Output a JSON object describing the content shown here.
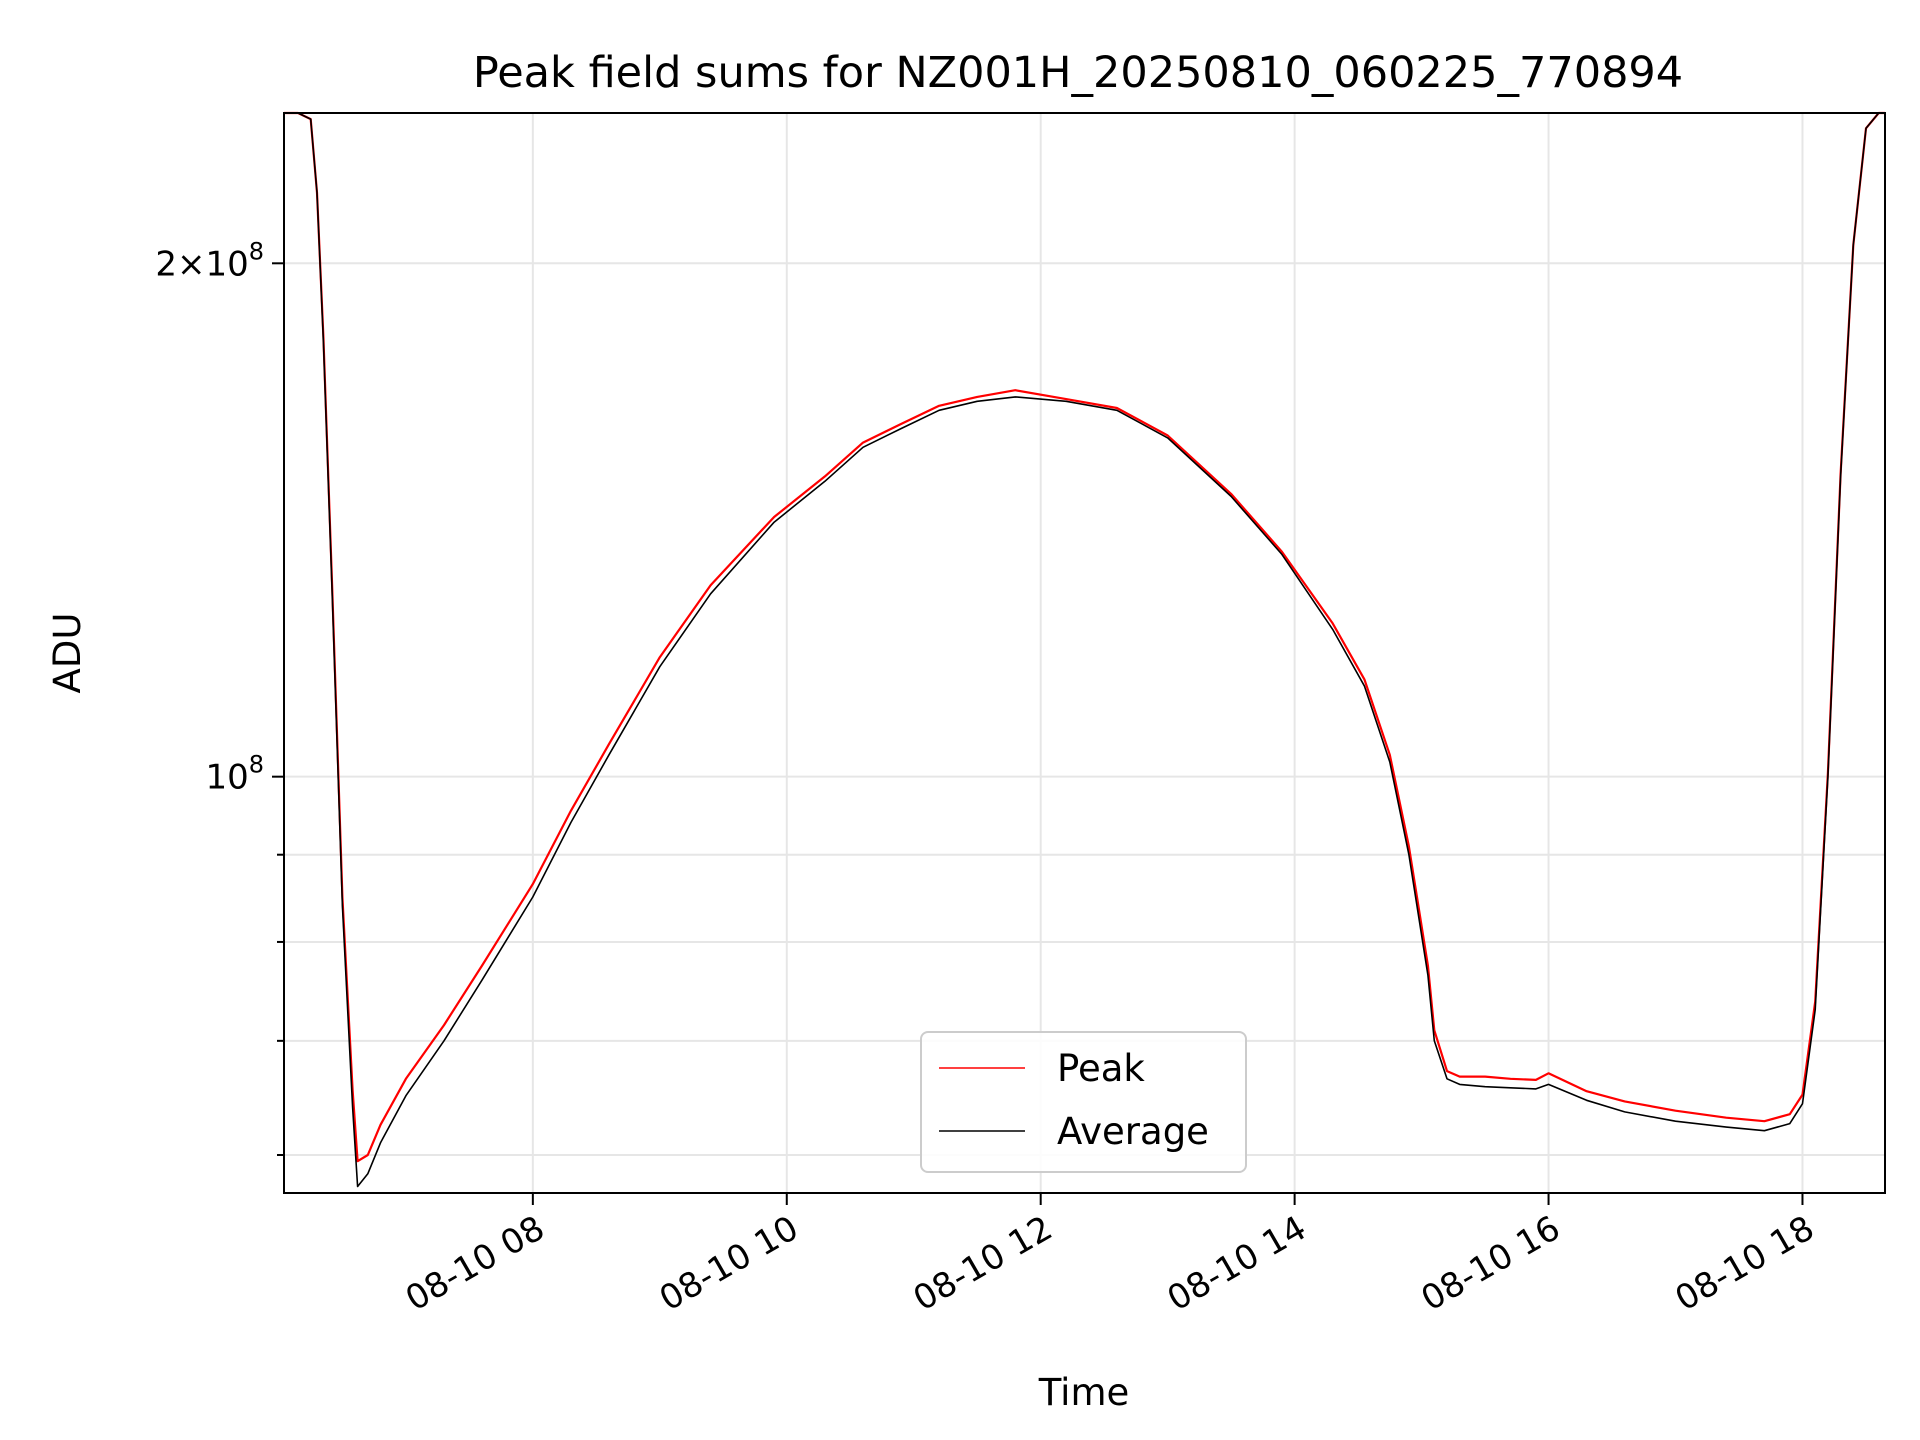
{
  "chart_data": {
    "type": "line",
    "title": "Peak field sums for NZ001H_20250810_060225_770894",
    "xlabel": "Time",
    "ylabel": "ADU",
    "x_unit": "hours on 2025-08-10",
    "xlim": [
      6.04,
      18.65
    ],
    "ylim": [
      57000000,
      245000000
    ],
    "yscale": "log",
    "grid": true,
    "legend": {
      "position": "lower-center",
      "entries": [
        "Peak",
        "Average"
      ]
    },
    "x_ticks": [
      {
        "value": 8,
        "label": "08-10 08"
      },
      {
        "value": 10,
        "label": "08-10 10"
      },
      {
        "value": 12,
        "label": "08-10 12"
      },
      {
        "value": 14,
        "label": "08-10 14"
      },
      {
        "value": 16,
        "label": "08-10 16"
      },
      {
        "value": 18,
        "label": "08-10 18"
      }
    ],
    "y_ticks": [
      {
        "value": 200000000,
        "label": "2×10",
        "exp": "8"
      },
      {
        "value": 100000000,
        "label": "10",
        "exp": "8"
      }
    ],
    "y_minor_ticks": [
      60000000,
      70000000,
      80000000,
      90000000
    ],
    "colors": {
      "Peak": "#ff0000",
      "Average": "#000000"
    },
    "series": [
      {
        "name": "Average",
        "x": [
          6.04,
          6.15,
          6.25,
          6.3,
          6.35,
          6.42,
          6.5,
          6.58,
          6.62,
          6.7,
          6.8,
          7.0,
          7.3,
          7.6,
          8.0,
          8.3,
          8.6,
          9.0,
          9.4,
          9.9,
          10.3,
          10.6,
          10.9,
          11.2,
          11.5,
          11.8,
          12.2,
          12.6,
          13.0,
          13.5,
          13.9,
          14.3,
          14.55,
          14.75,
          14.9,
          15.05,
          15.1,
          15.2,
          15.3,
          15.5,
          15.7,
          15.9,
          16.0,
          16.3,
          16.6,
          17.0,
          17.4,
          17.7,
          17.9,
          18.0,
          18.1,
          18.2,
          18.3,
          18.4,
          18.5,
          18.6,
          18.65
        ],
        "y": [
          245000000,
          245000000,
          243000000,
          220000000,
          180000000,
          128000000,
          84000000,
          64000000,
          57500000,
          58500000,
          61000000,
          65000000,
          70000000,
          76000000,
          85000000,
          94000000,
          103000000,
          116000000,
          128000000,
          141000000,
          149000000,
          156000000,
          160000000,
          164000000,
          166000000,
          167000000,
          166000000,
          164000000,
          158000000,
          146000000,
          135000000,
          122000000,
          113000000,
          102000000,
          90000000,
          76500000,
          70000000,
          66500000,
          66000000,
          65800000,
          65700000,
          65600000,
          66000000,
          64600000,
          63600000,
          62800000,
          62300000,
          62000000,
          62600000,
          64300000,
          73000000,
          100000000,
          150000000,
          205000000,
          240000000,
          245000000,
          245000000
        ]
      },
      {
        "name": "Peak",
        "x": [
          6.04,
          6.15,
          6.25,
          6.3,
          6.35,
          6.42,
          6.5,
          6.58,
          6.62,
          6.7,
          6.8,
          7.0,
          7.3,
          7.6,
          8.0,
          8.3,
          8.6,
          9.0,
          9.4,
          9.9,
          10.3,
          10.6,
          10.9,
          11.2,
          11.5,
          11.8,
          12.2,
          12.6,
          13.0,
          13.5,
          13.9,
          14.3,
          14.55,
          14.75,
          14.9,
          15.05,
          15.1,
          15.2,
          15.3,
          15.5,
          15.7,
          15.9,
          16.0,
          16.3,
          16.6,
          17.0,
          17.4,
          17.7,
          17.9,
          18.0,
          18.1,
          18.2,
          18.3,
          18.4,
          18.5,
          18.6,
          18.65
        ],
        "y": [
          245000000,
          245000000,
          243000000,
          220000000,
          181000000,
          129000000,
          85000000,
          65500000,
          59500000,
          60000000,
          62500000,
          66500000,
          71500000,
          77500000,
          86500000,
          95500000,
          104500000,
          117500000,
          129500000,
          142000000,
          150000000,
          157000000,
          161000000,
          165000000,
          167000000,
          168500000,
          166500000,
          164500000,
          158500000,
          146500000,
          135500000,
          123000000,
          114000000,
          103000000,
          91000000,
          77500000,
          71000000,
          67200000,
          66700000,
          66700000,
          66500000,
          66400000,
          67000000,
          65400000,
          64500000,
          63700000,
          63100000,
          62800000,
          63400000,
          65100000,
          73800000,
          100500000,
          150500000,
          205000000,
          240000000,
          245000000,
          245000000
        ]
      }
    ]
  }
}
